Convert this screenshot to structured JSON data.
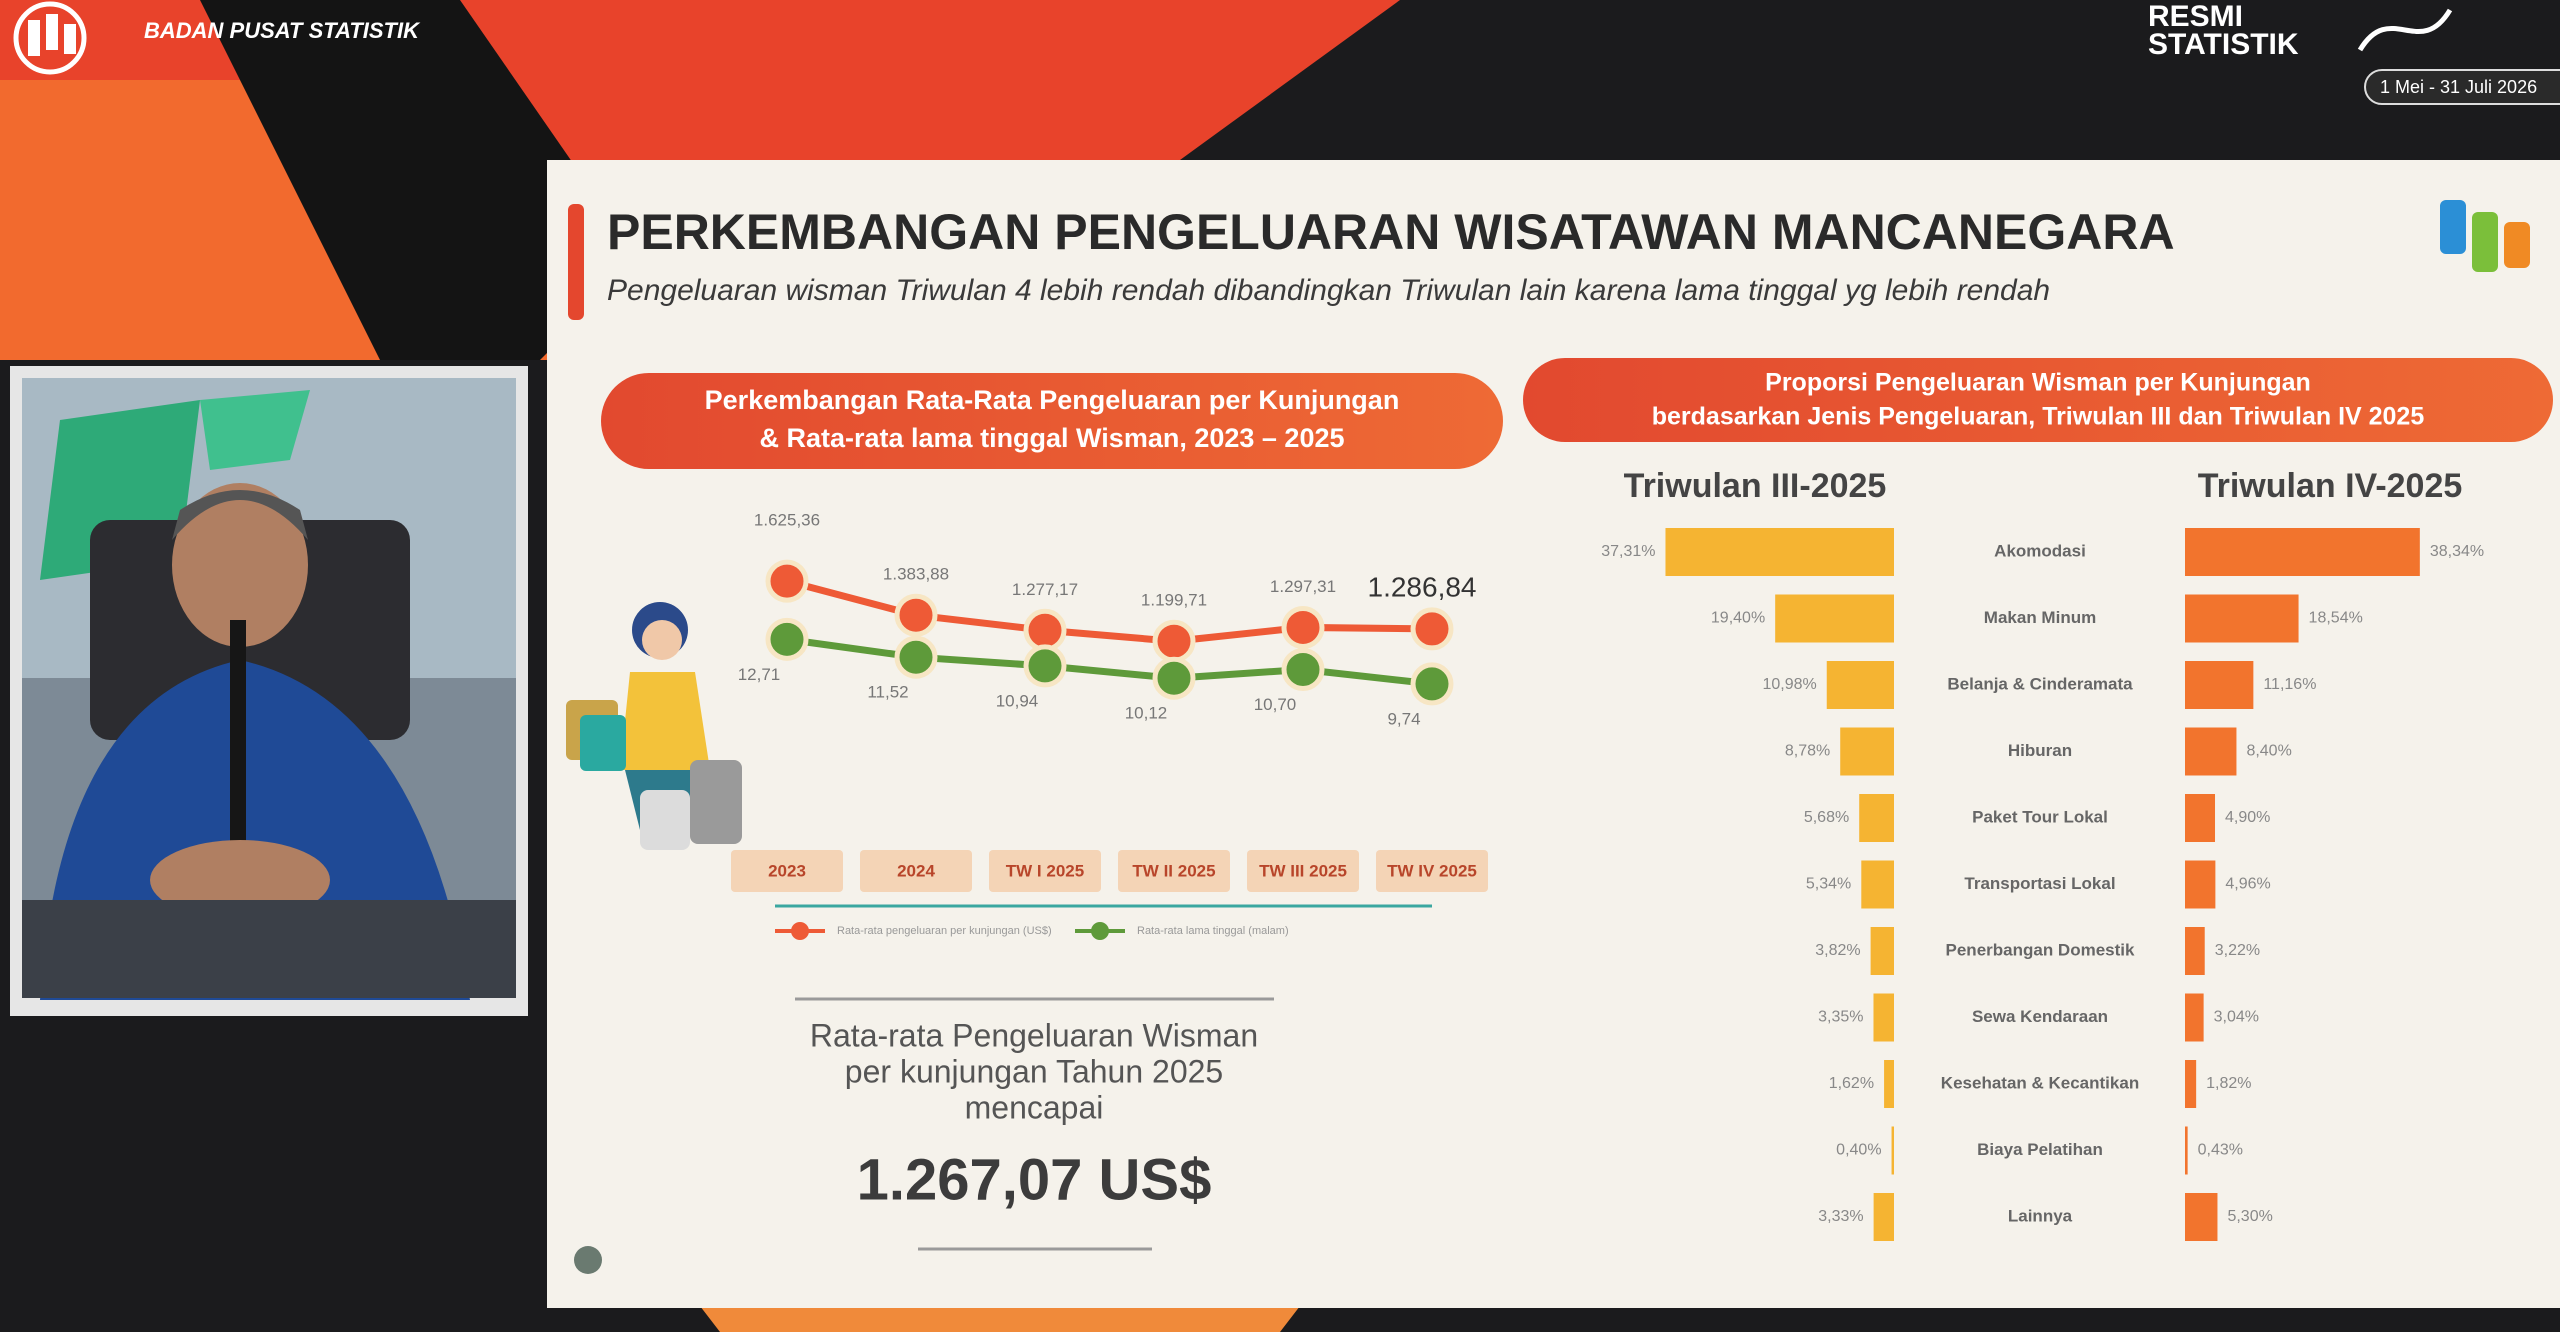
{
  "header": {
    "org": "BADAN PUSAT STATISTIK",
    "badge": [
      "RESMI",
      "STATISTIK"
    ],
    "date": "1 Mei - 31 Juli 2026"
  },
  "slide": {
    "title": "PERKEMBANGAN PENGELUARAN WISATAWAN MANCANEGARA",
    "subtitle": "Pengeluaran wisman Triwulan 4 lebih rendah dibandingkan Triwulan lain karena lama tinggal yg lebih rendah"
  },
  "chart_data": [
    {
      "type": "line",
      "title": [
        "Perkembangan Rata-Rata Pengeluaran per Kunjungan",
        "& Rata-rata lama tinggal Wisman, 2023 – 2025"
      ],
      "categories": [
        "2023",
        "2024",
        "TW I 2025",
        "TW II 2025",
        "TW III 2025",
        "TW IV 2025"
      ],
      "series": [
        {
          "name": "Rata-rata pengeluaran per kunjungan (US$)",
          "color": "#ee5a36",
          "values": [
            1625.36,
            1383.88,
            1277.17,
            1199.71,
            1297.31,
            1286.84
          ],
          "value_labels": [
            "1.625,36",
            "1.383,88",
            "1.277,17",
            "1.199,71",
            "1.297,31",
            "1.286,84"
          ]
        },
        {
          "name": "Rata-rata lama tinggal (malam)",
          "color": "#5e9a3a",
          "axis": "y2",
          "values": [
            12.71,
            11.52,
            10.94,
            10.12,
            10.7,
            9.74
          ],
          "value_labels": [
            "12,71",
            "11,52",
            "10,94",
            "10,12",
            "10,70",
            "9,74"
          ]
        }
      ],
      "ylim": [
        500,
        2200
      ],
      "y2lim": [
        6,
        22
      ]
    },
    {
      "type": "bar",
      "orientation": "horizontal",
      "title": [
        "Proporsi Pengeluaran Wisman per Kunjungan",
        "berdasarkan Jenis Pengeluaran, Triwulan III dan Triwulan IV 2025"
      ],
      "categories": [
        "Akomodasi",
        "Makan Minum",
        "Belanja & Cinderamata",
        "Hiburan",
        "Paket Tour Lokal",
        "Transportasi Lokal",
        "Penerbangan Domestik",
        "Sewa Kendaraan",
        "Kesehatan & Kecantikan",
        "Biaya Pelatihan",
        "Lainnya"
      ],
      "series": [
        {
          "name": "Triwulan III-2025",
          "color": "#f5b432",
          "values": [
            37.31,
            19.4,
            10.98,
            8.78,
            5.68,
            5.34,
            3.82,
            3.35,
            1.62,
            0.4,
            3.33
          ],
          "value_labels": [
            "37,31%",
            "19,40%",
            "10,98%",
            "8,78%",
            "5,68%",
            "5,34%",
            "3,82%",
            "3,35%",
            "1,62%",
            "0,40%",
            "3,33%"
          ]
        },
        {
          "name": "Triwulan IV-2025",
          "color": "#f2742d",
          "values": [
            38.34,
            18.54,
            11.16,
            8.4,
            4.9,
            4.96,
            3.22,
            3.04,
            1.82,
            0.43,
            5.3
          ],
          "value_labels": [
            "38,34%",
            "18,54%",
            "11,16%",
            "8,40%",
            "4,90%",
            "4,96%",
            "3,22%",
            "3,04%",
            "1,82%",
            "0,43%",
            "5,30%"
          ]
        }
      ],
      "xlim": [
        0,
        40
      ]
    }
  ],
  "summary": {
    "lines": [
      "Rata-rata Pengeluaran Wisman",
      "per kunjungan Tahun 2025",
      "mencapai"
    ],
    "value": "1.267,07 US$"
  }
}
